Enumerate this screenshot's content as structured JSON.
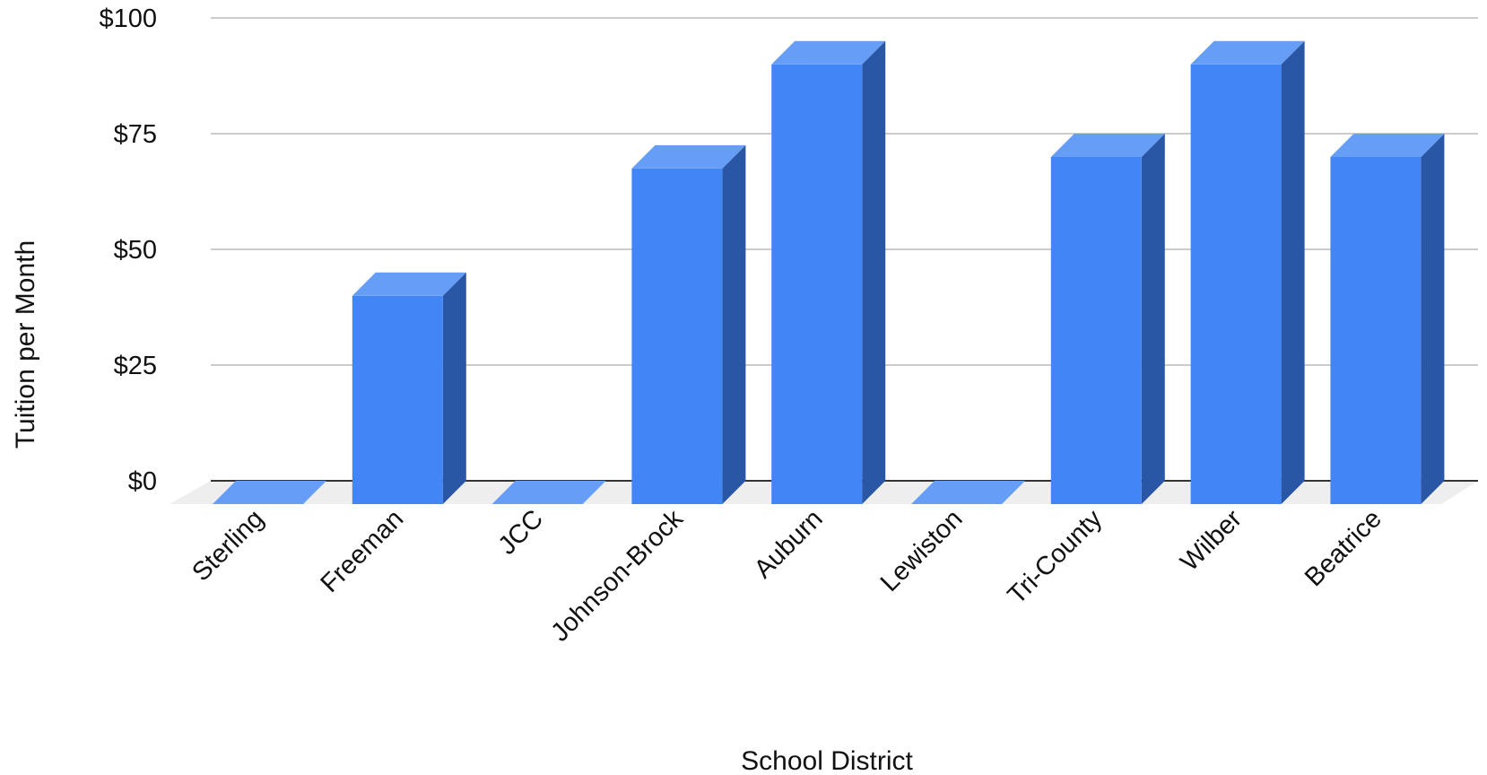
{
  "chart_data": {
    "type": "bar",
    "style": "3d-column",
    "title": "",
    "xlabel": "School District",
    "ylabel": "Tuition per Month",
    "categories": [
      "Sterling",
      "Freeman",
      "JCC",
      "Johnson-Brock",
      "Auburn",
      "Lewiston",
      "Tri-County",
      "Wilber",
      "Beatrice"
    ],
    "values": [
      0,
      45,
      0,
      72.5,
      95,
      0,
      75,
      95,
      75
    ],
    "ylim": [
      0,
      100
    ],
    "yticks": [
      0,
      25,
      50,
      75,
      100
    ],
    "ytick_labels": [
      "$0",
      "$25",
      "$50",
      "$75",
      "$100"
    ],
    "grid": true,
    "legend": "none",
    "colors": {
      "bar_front": "#4285F4",
      "bar_top": "#669DF6",
      "bar_side": "#2A56A6",
      "gridline": "#CCCCCC",
      "baseline": "#333333",
      "floor": "#EEEEEE"
    }
  }
}
